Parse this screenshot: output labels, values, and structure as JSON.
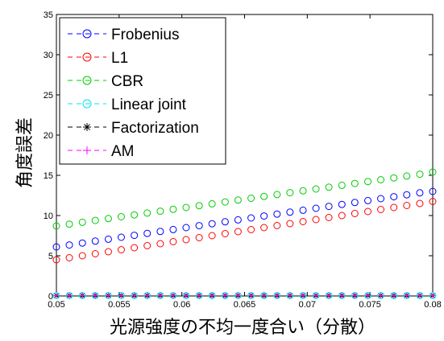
{
  "chart_data": {
    "type": "scatter",
    "title": "",
    "xlabel": "光源強度の不均一度合い（分散）",
    "ylabel": "角度誤差",
    "xlim": [
      0.05,
      0.08
    ],
    "ylim": [
      0,
      35
    ],
    "xticks": [
      "0.05",
      "0.055",
      "0.06",
      "0.065",
      "0.07",
      "0.075",
      "0.08"
    ],
    "yticks": [
      "0",
      "5",
      "10",
      "15",
      "20",
      "25",
      "30",
      "35"
    ],
    "grid": false,
    "legend_position": "top-left",
    "x": [
      0.05,
      0.05103,
      0.05207,
      0.0531,
      0.05414,
      0.05517,
      0.05621,
      0.05724,
      0.05828,
      0.05931,
      0.06034,
      0.06138,
      0.06241,
      0.06345,
      0.06448,
      0.06552,
      0.06655,
      0.06759,
      0.06862,
      0.06966,
      0.07069,
      0.07172,
      0.07276,
      0.07379,
      0.07483,
      0.07586,
      0.0769,
      0.07793,
      0.07897,
      0.08
    ],
    "series": [
      {
        "name": "Frobenius",
        "marker": "o",
        "color": "#0000ff",
        "values": [
          6.1,
          6.34,
          6.58,
          6.82,
          7.06,
          7.3,
          7.54,
          7.78,
          8.02,
          8.26,
          8.5,
          8.74,
          8.98,
          9.22,
          9.46,
          9.7,
          9.94,
          10.18,
          10.42,
          10.66,
          10.9,
          11.14,
          11.38,
          11.62,
          11.86,
          12.1,
          12.34,
          12.58,
          12.82,
          13.0
        ]
      },
      {
        "name": "L1",
        "marker": "o",
        "color": "#ff0000",
        "values": [
          4.5,
          4.75,
          5.0,
          5.25,
          5.5,
          5.75,
          6.0,
          6.25,
          6.5,
          6.75,
          7.0,
          7.25,
          7.5,
          7.75,
          8.0,
          8.25,
          8.5,
          8.75,
          9.0,
          9.25,
          9.5,
          9.75,
          10.0,
          10.25,
          10.5,
          10.75,
          11.0,
          11.25,
          11.5,
          11.75
        ]
      },
      {
        "name": "CBR",
        "marker": "o",
        "color": "#00cc00",
        "values": [
          8.7,
          8.93,
          9.16,
          9.39,
          9.62,
          9.85,
          10.08,
          10.31,
          10.54,
          10.77,
          11.0,
          11.23,
          11.46,
          11.69,
          11.92,
          12.15,
          12.38,
          12.61,
          12.84,
          13.07,
          13.3,
          13.53,
          13.76,
          13.99,
          14.22,
          14.45,
          14.68,
          14.91,
          15.14,
          15.4
        ]
      },
      {
        "name": "Linear joint",
        "marker": "o",
        "color": "#00e5ee",
        "values": [
          0.05,
          0.05,
          0.05,
          0.05,
          0.05,
          0.05,
          0.05,
          0.05,
          0.05,
          0.05,
          0.05,
          0.05,
          0.05,
          0.05,
          0.05,
          0.05,
          0.05,
          0.05,
          0.05,
          0.05,
          0.05,
          0.05,
          0.05,
          0.05,
          0.05,
          0.05,
          0.05,
          0.05,
          0.05,
          0.05
        ]
      },
      {
        "name": "Factorization",
        "marker": "*",
        "color": "#000000",
        "values": [
          0.05,
          0.05,
          0.05,
          0.05,
          0.05,
          0.05,
          0.05,
          0.05,
          0.05,
          0.05,
          0.05,
          0.05,
          0.05,
          0.05,
          0.05,
          0.05,
          0.05,
          0.05,
          0.05,
          0.05,
          0.05,
          0.05,
          0.05,
          0.05,
          0.05,
          0.05,
          0.05,
          0.05,
          0.05,
          0.05
        ]
      },
      {
        "name": "AM",
        "marker": "+",
        "color": "#ff00ff",
        "values": [
          0.05,
          0.05,
          0.05,
          0.05,
          0.05,
          0.05,
          0.05,
          0.05,
          0.05,
          0.05,
          0.05,
          0.05,
          0.05,
          0.05,
          0.05,
          0.05,
          0.05,
          0.05,
          0.05,
          0.05,
          0.05,
          0.05,
          0.05,
          0.05,
          0.05,
          0.05,
          0.05,
          0.05,
          0.05,
          0.05
        ]
      }
    ]
  }
}
